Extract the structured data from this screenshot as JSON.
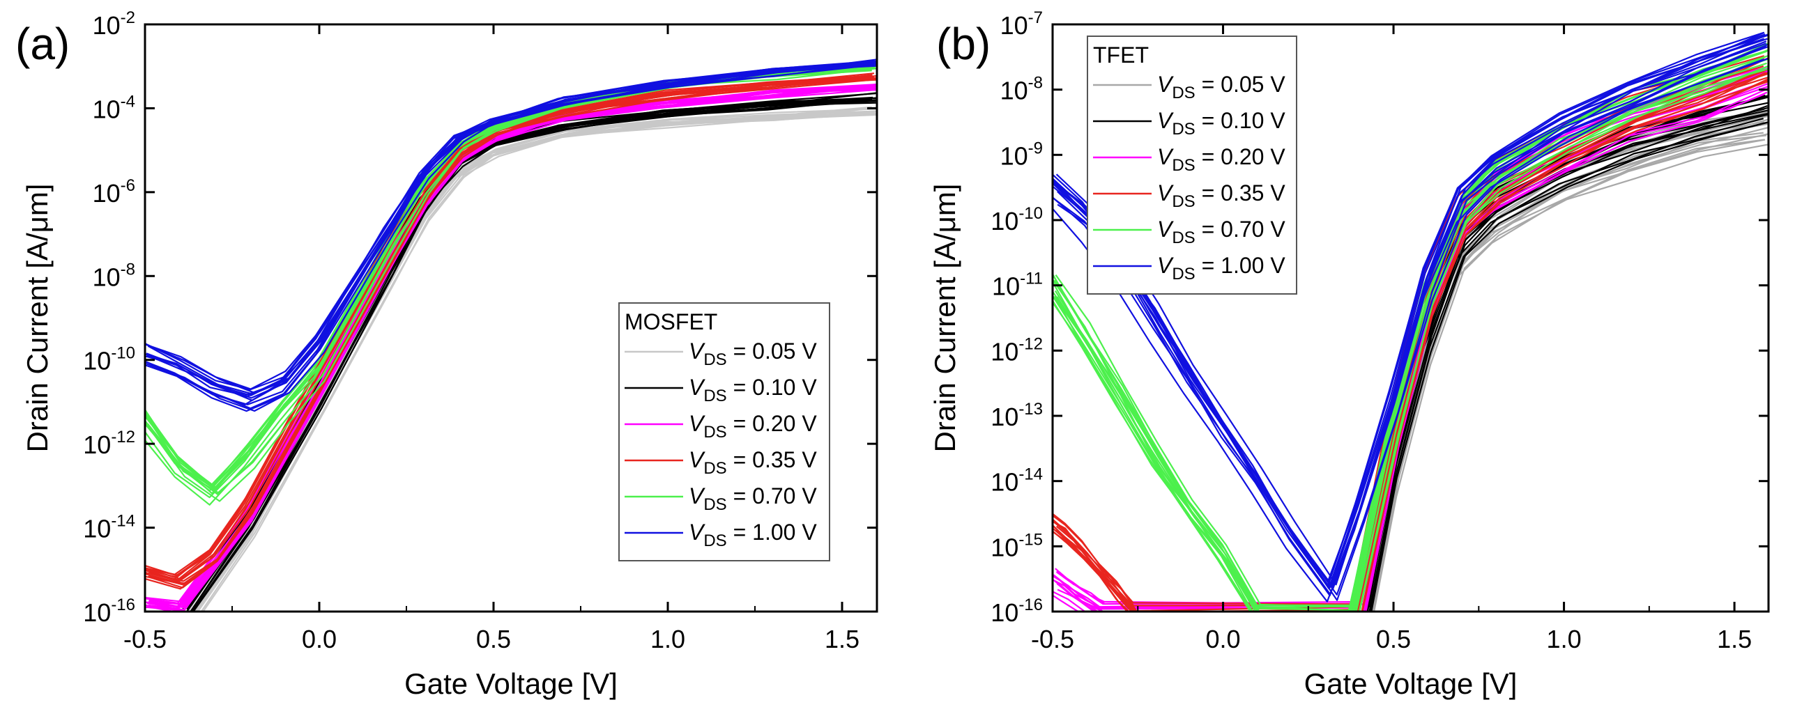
{
  "panels": [
    {
      "label": "(a)",
      "xlabel": "Gate Voltage [V]",
      "ylabel": "Drain Current [A/μm]",
      "legend_title": "MOSFET",
      "legend_position": "lower-right",
      "xticks": [
        "-0.5",
        "0.0",
        "0.5",
        "1.0",
        "1.5"
      ],
      "yticks": [
        {
          "base": "10",
          "exp": "-2"
        },
        {
          "base": "10",
          "exp": "-4"
        },
        {
          "base": "10",
          "exp": "-6"
        },
        {
          "base": "10",
          "exp": "-8"
        },
        {
          "base": "10",
          "exp": "-10"
        },
        {
          "base": "10",
          "exp": "-12"
        },
        {
          "base": "10",
          "exp": "-14"
        },
        {
          "base": "10",
          "exp": "-16"
        }
      ],
      "legend": [
        {
          "var": "V",
          "sub": "DS",
          "value": " = 0.05 V",
          "color": "#c8c8c8"
        },
        {
          "var": "V",
          "sub": "DS",
          "value": " = 0.10 V",
          "color": "#000000"
        },
        {
          "var": "V",
          "sub": "DS",
          "value": " = 0.20 V",
          "color": "#ff00ff"
        },
        {
          "var": "V",
          "sub": "DS",
          "value": " = 0.35 V",
          "color": "#e8251f"
        },
        {
          "var": "V",
          "sub": "DS",
          "value": " = 0.70 V",
          "color": "#4cf04c"
        },
        {
          "var": "V",
          "sub": "DS",
          "value": " = 1.00 V",
          "color": "#1010e0"
        }
      ]
    },
    {
      "label": "(b)",
      "xlabel": "Gate Voltage [V]",
      "ylabel": "Drain Current [A/μm]",
      "legend_title": "TFET",
      "legend_position": "upper-left",
      "xticks": [
        "-0.5",
        "0.0",
        "0.5",
        "1.0",
        "1.5"
      ],
      "yticks": [
        {
          "base": "10",
          "exp": "-7"
        },
        {
          "base": "10",
          "exp": "-8"
        },
        {
          "base": "10",
          "exp": "-9"
        },
        {
          "base": "10",
          "exp": "-10"
        },
        {
          "base": "10",
          "exp": "-11"
        },
        {
          "base": "10",
          "exp": "-12"
        },
        {
          "base": "10",
          "exp": "-13"
        },
        {
          "base": "10",
          "exp": "-14"
        },
        {
          "base": "10",
          "exp": "-15"
        },
        {
          "base": "10",
          "exp": "-16"
        }
      ],
      "legend": [
        {
          "var": "V",
          "sub": "DS",
          "value": " = 0.05 V",
          "color": "#a8a8a8"
        },
        {
          "var": "V",
          "sub": "DS",
          "value": " = 0.10 V",
          "color": "#000000"
        },
        {
          "var": "V",
          "sub": "DS",
          "value": " = 0.20 V",
          "color": "#ff00ff"
        },
        {
          "var": "V",
          "sub": "DS",
          "value": " = 0.35 V",
          "color": "#e8251f"
        },
        {
          "var": "V",
          "sub": "DS",
          "value": " = 0.70 V",
          "color": "#4cf04c"
        },
        {
          "var": "V",
          "sub": "DS",
          "value": " = 1.00 V",
          "color": "#1010e0"
        }
      ]
    }
  ],
  "chart_data": [
    {
      "type": "line",
      "title": "",
      "xlabel": "Gate Voltage [V]",
      "ylabel": "Drain Current [A/μm]",
      "xlim": [
        -0.5,
        1.6
      ],
      "ylim": [
        1e-16,
        0.01
      ],
      "yscale": "log",
      "grid": false,
      "legend_title": "MOSFET",
      "series": [
        {
          "name": "VDS = 0.05 V",
          "color": "#c8c8c8",
          "x": [
            -0.36,
            -0.2,
            0.0,
            0.2,
            0.3,
            0.4,
            0.5,
            0.7,
            1.0,
            1.3,
            1.6
          ],
          "y": [
            1e-16,
            1e-14,
            1e-11,
            1e-08,
            3e-07,
            3e-06,
            9e-06,
            2.5e-05,
            4.5e-05,
            6.5e-05,
            9e-05
          ]
        },
        {
          "name": "VDS = 0.10 V",
          "color": "#000000",
          "x": [
            -0.38,
            -0.2,
            0.0,
            0.2,
            0.3,
            0.4,
            0.5,
            0.7,
            1.0,
            1.3,
            1.6
          ],
          "y": [
            1e-16,
            1.5e-14,
            1.5e-11,
            1.5e-08,
            5e-07,
            5e-06,
            1.5e-05,
            4e-05,
            8e-05,
            0.00012,
            0.00018
          ]
        },
        {
          "name": "VDS = 0.20 V",
          "color": "#ff00ff",
          "x": [
            -0.5,
            -0.4,
            -0.2,
            0.0,
            0.2,
            0.3,
            0.4,
            0.5,
            0.7,
            1.0,
            1.3,
            1.6
          ],
          "y": [
            1.5e-16,
            1.2e-16,
            2e-14,
            2e-11,
            2e-08,
            6e-07,
            6e-06,
            2e-05,
            6e-05,
            0.00013,
            0.00022,
            0.00033
          ]
        },
        {
          "name": "VDS = 0.35 V",
          "color": "#e8251f",
          "x": [
            -0.5,
            -0.4,
            -0.3,
            -0.2,
            0.0,
            0.2,
            0.3,
            0.4,
            0.5,
            0.7,
            1.0,
            1.3,
            1.6
          ],
          "y": [
            8e-16,
            5e-16,
            2e-15,
            3e-14,
            3e-11,
            3e-08,
            8e-07,
            8e-06,
            2.5e-05,
            8e-05,
            0.0002,
            0.00035,
            0.00055
          ]
        },
        {
          "name": "VDS = 0.70 V",
          "color": "#4cf04c",
          "x": [
            -0.5,
            -0.4,
            -0.3,
            -0.2,
            -0.1,
            0.0,
            0.2,
            0.3,
            0.4,
            0.5,
            0.7,
            1.0,
            1.3,
            1.6
          ],
          "y": [
            4e-12,
            3e-13,
            7e-14,
            5e-13,
            6e-12,
            6e-11,
            5e-08,
            1.2e-06,
            1.2e-05,
            3.5e-05,
            0.00012,
            0.00035,
            0.00065,
            0.001
          ]
        },
        {
          "name": "VDS = 1.00 V",
          "color": "#1010e0",
          "x": [
            -0.5,
            -0.4,
            -0.3,
            -0.2,
            -0.1,
            0.0,
            0.2,
            0.3,
            0.4,
            0.5,
            0.7,
            1.0,
            1.3,
            1.6
          ],
          "y": [
            1.5e-10,
            7e-11,
            2.5e-11,
            1.2e-11,
            3e-11,
            3e-10,
            1.5e-07,
            3e-06,
            2e-05,
            5e-05,
            0.00015,
            0.0004,
            0.00075,
            0.0012
          ]
        }
      ]
    },
    {
      "type": "line",
      "title": "",
      "xlabel": "Gate Voltage [V]",
      "ylabel": "Drain Current [A/μm]",
      "xlim": [
        -0.5,
        1.6
      ],
      "ylim": [
        1e-16,
        1e-07
      ],
      "yscale": "log",
      "grid": false,
      "legend_title": "TFET",
      "series": [
        {
          "name": "VDS = 0.05 V",
          "color": "#a8a8a8",
          "x": [
            0.43,
            0.5,
            0.6,
            0.7,
            0.8,
            1.0,
            1.2,
            1.4,
            1.6
          ],
          "y": [
            1e-16,
            1e-14,
            1e-12,
            3e-11,
            1e-10,
            4e-10,
            1e-09,
            2e-09,
            3e-09
          ]
        },
        {
          "name": "VDS = 0.10 V",
          "color": "#000000",
          "x": [
            0.42,
            0.5,
            0.6,
            0.7,
            0.8,
            1.0,
            1.2,
            1.4,
            1.6
          ],
          "y": [
            1e-16,
            2e-14,
            2e-12,
            6e-11,
            2e-10,
            7e-10,
            1.8e-09,
            3.5e-09,
            6e-09
          ]
        },
        {
          "name": "VDS = 0.20 V",
          "color": "#ff00ff",
          "x": [
            -0.5,
            -0.45,
            -0.4,
            -0.36,
            0.4,
            0.5,
            0.6,
            0.7,
            0.8,
            1.0,
            1.2,
            1.4,
            1.6
          ],
          "y": [
            3e-16,
            2e-16,
            1.3e-16,
            1e-16,
            1e-16,
            5e-14,
            5e-12,
            1e-10,
            3e-10,
            1.1e-09,
            3e-09,
            6e-09,
            1.5e-08
          ]
        },
        {
          "name": "VDS = 0.35 V",
          "color": "#e8251f",
          "x": [
            -0.5,
            -0.45,
            -0.4,
            -0.35,
            -0.3,
            -0.25,
            0.39,
            0.5,
            0.6,
            0.7,
            0.8,
            1.0,
            1.2,
            1.4,
            1.6
          ],
          "y": [
            2.5e-15,
            1.5e-15,
            8e-16,
            4e-16,
            2e-16,
            1e-16,
            1e-16,
            6e-14,
            7e-12,
            1.2e-10,
            4e-10,
            1.5e-09,
            4.5e-09,
            1e-08,
            2.5e-08
          ]
        },
        {
          "name": "VDS = 0.70 V",
          "color": "#4cf04c",
          "x": [
            -0.5,
            -0.4,
            -0.3,
            -0.2,
            -0.1,
            0.0,
            0.1,
            0.38,
            0.5,
            0.6,
            0.7,
            0.8,
            1.0,
            1.2,
            1.4,
            1.6
          ],
          "y": [
            1e-11,
            1.5e-12,
            2e-13,
            2.5e-14,
            4e-15,
            8e-16,
            1e-16,
            1e-16,
            8e-14,
            9e-12,
            1.5e-10,
            5e-10,
            2e-09,
            6e-09,
            1.5e-08,
            3.5e-08
          ]
        },
        {
          "name": "VDS = 1.00 V",
          "color": "#1010e0",
          "x": [
            -0.5,
            -0.4,
            -0.3,
            -0.2,
            -0.1,
            0.0,
            0.1,
            0.2,
            0.32,
            0.4,
            0.5,
            0.6,
            0.7,
            0.8,
            1.0,
            1.2,
            1.4,
            1.6
          ],
          "y": [
            3e-10,
            1e-10,
            2e-11,
            3e-12,
            4e-13,
            6e-14,
            1e-14,
            1.5e-15,
            2e-16,
            3e-15,
            1.5e-13,
            1e-11,
            2e-10,
            6e-10,
            2.5e-09,
            8e-09,
            2e-08,
            5e-08
          ]
        }
      ]
    }
  ]
}
